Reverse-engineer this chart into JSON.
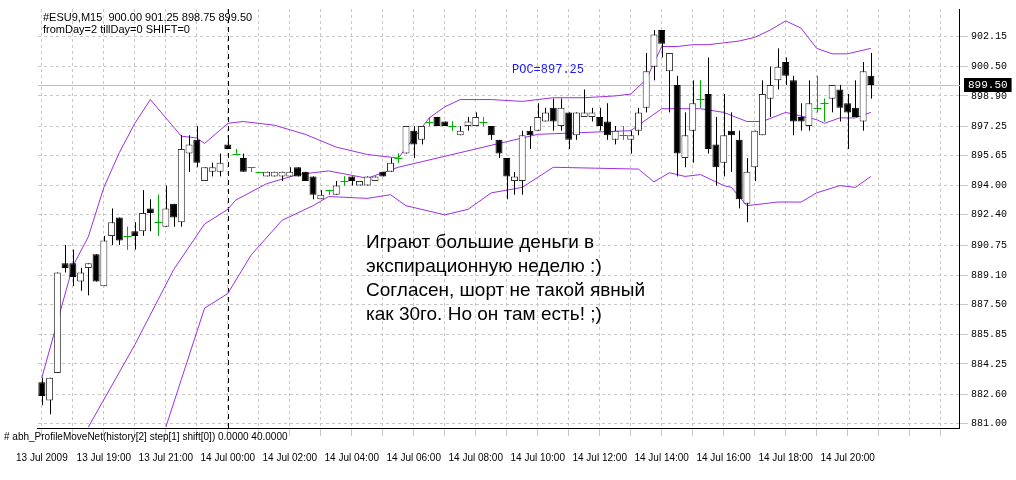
{
  "chart_data": {
    "type": "candlestick",
    "title": "#ESU9,M15  900.00 901.25 898.75 899.50",
    "subtitle": "fromDay=2 tillDay=0 SHIFT=0",
    "categories": [
      "13 Jul 2009",
      null,
      null,
      null,
      null,
      null,
      null,
      null,
      "13 Jul 19:00",
      null,
      null,
      null,
      null,
      null,
      null,
      null,
      "13 Jul 21:00",
      null,
      null,
      null,
      null,
      null,
      null,
      null,
      "14 Jul 00:00",
      null,
      null,
      null,
      null,
      null,
      null,
      null,
      "14 Jul 02:00",
      null,
      null,
      null,
      null,
      null,
      null,
      null,
      "14 Jul 04:00",
      null,
      null,
      null,
      null,
      null,
      null,
      null,
      "14 Jul 06:00",
      null,
      null,
      null,
      null,
      null,
      null,
      null,
      "14 Jul 08:00",
      null,
      null,
      null,
      null,
      null,
      null,
      null,
      "14 Jul 10:00",
      null,
      null,
      null,
      null,
      null,
      null,
      null,
      "14 Jul 12:00",
      null,
      null,
      null,
      null,
      null,
      null,
      null,
      "14 Jul 14:00",
      null,
      null,
      null,
      null,
      null,
      null,
      null,
      "14 Jul 16:00",
      null,
      null,
      null,
      null,
      null,
      null,
      null,
      "14 Jul 18:00",
      null,
      null,
      null,
      null,
      null,
      null,
      null,
      "14 Jul 20:00",
      null,
      null,
      null,
      null,
      null,
      null,
      null,
      null,
      null,
      null,
      null,
      null,
      null,
      null
    ],
    "ohlc": [
      [
        883.25,
        883.5,
        882.0,
        882.5
      ],
      [
        882.25,
        883.5,
        881.5,
        883.5
      ],
      [
        883.75,
        889.25,
        883.75,
        889.25
      ],
      [
        889.75,
        890.75,
        889.25,
        889.5
      ],
      [
        889.75,
        890.5,
        888.5,
        889.0
      ],
      [
        888.75,
        889.5,
        888.25,
        889.25
      ],
      [
        889.5,
        889.75,
        888.0,
        889.75
      ],
      [
        890.25,
        890.25,
        888.75,
        888.75
      ],
      [
        888.5,
        891.25,
        888.5,
        891.0
      ],
      [
        891.25,
        892.75,
        890.75,
        892.0
      ],
      [
        892.25,
        892.25,
        890.75,
        891.0
      ],
      [
        891.25,
        891.75,
        890.5,
        891.25
      ],
      [
        891.5,
        892.0,
        890.5,
        891.25
      ],
      [
        891.5,
        893.75,
        891.25,
        892.5
      ],
      [
        892.75,
        893.25,
        891.5,
        892.5
      ],
      [
        892.0,
        893.5,
        891.25,
        892.0
      ],
      [
        891.75,
        894.0,
        891.75,
        892.75
      ],
      [
        893.0,
        893.0,
        891.75,
        892.25
      ],
      [
        892.0,
        896.75,
        891.75,
        896.0
      ],
      [
        895.75,
        896.75,
        894.75,
        896.25
      ],
      [
        896.5,
        897.25,
        895.0,
        895.25
      ],
      [
        894.25,
        895.0,
        894.25,
        895.0
      ],
      [
        894.75,
        895.25,
        894.5,
        895.0
      ],
      [
        894.75,
        895.75,
        894.5,
        895.25
      ],
      [
        896.25,
        896.5,
        896.0,
        896.0
      ],
      [
        895.75,
        896.0,
        895.75,
        895.75
      ],
      [
        895.5,
        895.75,
        894.75,
        894.75
      ],
      [
        895.0,
        895.0,
        894.75,
        895.0
      ],
      [
        894.75,
        894.75,
        894.75,
        894.75
      ],
      [
        894.5,
        894.75,
        894.5,
        894.75
      ],
      [
        894.5,
        894.75,
        894.5,
        894.75
      ],
      [
        894.5,
        894.75,
        894.25,
        894.75
      ],
      [
        894.5,
        895.0,
        894.5,
        894.75
      ],
      [
        895.0,
        895.0,
        894.5,
        894.5
      ],
      [
        894.75,
        894.75,
        894.25,
        894.25
      ],
      [
        894.5,
        894.5,
        893.25,
        893.5
      ],
      [
        893.25,
        893.75,
        893.25,
        893.5
      ],
      [
        893.75,
        893.75,
        893.5,
        893.75
      ],
      [
        893.5,
        894.25,
        893.5,
        894.0
      ],
      [
        894.25,
        894.5,
        894.0,
        894.25
      ],
      [
        894.5,
        894.5,
        894.0,
        894.25
      ],
      [
        894.0,
        894.25,
        894.0,
        894.25
      ],
      [
        894.0,
        894.5,
        894.0,
        894.5
      ],
      [
        894.25,
        894.5,
        894.25,
        894.5
      ],
      [
        894.75,
        894.75,
        894.5,
        894.5
      ],
      [
        894.75,
        895.5,
        894.75,
        895.25
      ],
      [
        895.5,
        895.75,
        895.25,
        895.5
      ],
      [
        895.75,
        897.25,
        895.75,
        897.25
      ],
      [
        897.0,
        897.25,
        895.5,
        896.25
      ],
      [
        896.5,
        897.25,
        896.25,
        897.25
      ],
      [
        897.5,
        897.75,
        897.25,
        897.5
      ],
      [
        897.75,
        897.75,
        897.25,
        897.25
      ],
      [
        897.5,
        897.5,
        897.25,
        897.25
      ],
      [
        897.25,
        897.5,
        897.0,
        897.25
      ],
      [
        896.75,
        897.25,
        896.75,
        897.0
      ],
      [
        897.25,
        897.75,
        897.0,
        897.5
      ],
      [
        897.25,
        898.0,
        897.25,
        897.75
      ],
      [
        897.5,
        897.75,
        897.25,
        897.5
      ],
      [
        897.25,
        897.25,
        896.5,
        896.75
      ],
      [
        896.5,
        896.5,
        895.5,
        895.75
      ],
      [
        895.5,
        895.5,
        893.25,
        894.5
      ],
      [
        894.25,
        894.75,
        893.5,
        894.5
      ],
      [
        894.25,
        897.0,
        893.5,
        896.75
      ],
      [
        897.0,
        897.25,
        896.0,
        896.75
      ],
      [
        897.0,
        898.5,
        897.0,
        897.75
      ],
      [
        897.5,
        898.25,
        897.5,
        898.0
      ],
      [
        898.25,
        898.75,
        897.0,
        897.5
      ],
      [
        897.25,
        898.75,
        897.0,
        898.25
      ],
      [
        898.0,
        898.0,
        896.0,
        896.5
      ],
      [
        896.75,
        898.0,
        896.5,
        898.0
      ],
      [
        897.75,
        899.25,
        897.75,
        898.0
      ],
      [
        897.75,
        898.25,
        897.5,
        898.0
      ],
      [
        897.75,
        898.25,
        897.0,
        897.25
      ],
      [
        897.5,
        898.5,
        896.5,
        896.75
      ],
      [
        896.5,
        897.25,
        896.25,
        897.0
      ],
      [
        896.75,
        897.25,
        896.5,
        896.75
      ],
      [
        896.5,
        897.0,
        895.75,
        896.75
      ],
      [
        897.0,
        898.25,
        896.75,
        898.0
      ],
      [
        898.25,
        901.25,
        898.0,
        900.25
      ],
      [
        900.5,
        902.5,
        899.75,
        902.25
      ],
      [
        902.5,
        902.5,
        901.0,
        901.75
      ],
      [
        900.25,
        901.25,
        898.0,
        901.25
      ],
      [
        899.5,
        900.0,
        894.5,
        895.75
      ],
      [
        895.5,
        898.0,
        895.0,
        896.75
      ],
      [
        897.0,
        899.75,
        895.25,
        898.5
      ],
      [
        898.75,
        899.75,
        898.25,
        898.75
      ],
      [
        899.0,
        901.0,
        895.75,
        896.0
      ],
      [
        896.25,
        897.75,
        894.0,
        895.0
      ],
      [
        895.25,
        899.0,
        894.5,
        896.75
      ],
      [
        897.0,
        898.0,
        894.75,
        896.75
      ],
      [
        896.5,
        897.0,
        892.75,
        893.25
      ],
      [
        893.0,
        895.5,
        892.0,
        894.75
      ],
      [
        895.0,
        897.0,
        894.25,
        897.0
      ],
      [
        896.75,
        899.75,
        896.75,
        899.0
      ],
      [
        898.75,
        900.5,
        897.75,
        899.5
      ],
      [
        899.75,
        901.5,
        899.25,
        900.5
      ],
      [
        900.75,
        901.0,
        899.5,
        900.0
      ],
      [
        899.75,
        900.0,
        896.75,
        897.5
      ],
      [
        897.75,
        898.5,
        897.0,
        897.5
      ],
      [
        897.25,
        899.75,
        897.0,
        898.5
      ],
      [
        898.25,
        900.0,
        898.0,
        898.25
      ],
      [
        898.5,
        898.75,
        897.5,
        898.5
      ],
      [
        898.75,
        899.5,
        898.0,
        899.5
      ],
      [
        899.25,
        899.5,
        897.5,
        898.25
      ],
      [
        898.5,
        899.0,
        896.0,
        898.0
      ],
      [
        898.25,
        899.75,
        897.75,
        897.75
      ],
      [
        897.5,
        900.75,
        897.0,
        900.25
      ],
      [
        900.0,
        901.25,
        898.75,
        899.5
      ],
      null,
      null,
      null,
      null,
      null,
      null,
      null,
      null,
      null,
      null,
      null
    ],
    "series": [
      {
        "type": "line",
        "color": "#9b30e6",
        "values": [
          883.5,
          null,
          null,
          null,
          889.6,
          null,
          891.2,
          null,
          893.9,
          null,
          895.8,
          null,
          897.4,
          null,
          898.7,
          null,
          897.7,
          null,
          896.7,
          null,
          896.6,
          896.3,
          null,
          null,
          897.4,
          null,
          897.5,
          null,
          null,
          null,
          897.3,
          null,
          null,
          null,
          896.8,
          null,
          null,
          null,
          896.1,
          null,
          null,
          null,
          895.7,
          null,
          null,
          null,
          895.5,
          null,
          null,
          null,
          897.7,
          null,
          898.3,
          null,
          898.7,
          null,
          null,
          null,
          898.7,
          null,
          null,
          null,
          898.6,
          null,
          null,
          null,
          898.8,
          null,
          null,
          null,
          898.8,
          null,
          null,
          null,
          898.9,
          null,
          899.0,
          null,
          899.8,
          null,
          901.6,
          null,
          901.6,
          null,
          901.7,
          null,
          901.7,
          null,
          901.8,
          null,
          901.9,
          null,
          902.1,
          null,
          902.5,
          null,
          903.0,
          null,
          902.6,
          null,
          901.5,
          null,
          901.2,
          null,
          901.2,
          null,
          901.4,
          901.5,
          null,
          null,
          null,
          null,
          null,
          null,
          null,
          null,
          null,
          null,
          null
        ]
      },
      {
        "type": "line",
        "color": "#9b30e6",
        "values": [
          null,
          null,
          null,
          null,
          null,
          null,
          880.8,
          null,
          null,
          null,
          null,
          null,
          885.3,
          null,
          null,
          null,
          null,
          889.4,
          null,
          null,
          null,
          891.9,
          null,
          null,
          892.7,
          893.2,
          null,
          null,
          null,
          894.1,
          null,
          null,
          null,
          894.6,
          null,
          null,
          null,
          894.8,
          null,
          null,
          null,
          null,
          894.4,
          null,
          null,
          null,
          895.0,
          null,
          null,
          null,
          null,
          null,
          null,
          null,
          null,
          null,
          null,
          null,
          896.2,
          null,
          null,
          null,
          null,
          null,
          896.8,
          null,
          null,
          null,
          null,
          null,
          null,
          null,
          null,
          null,
          null,
          null,
          897.0,
          null,
          null,
          null,
          898.2,
          null,
          null,
          898.2,
          null,
          898.2,
          null,
          null,
          898.0,
          null,
          null,
          897.5,
          null,
          897.5,
          null,
          null,
          898.0,
          null,
          null,
          null,
          897.6,
          897.4,
          null,
          897.7,
          null,
          897.7,
          null,
          898.0,
          null,
          null,
          null,
          null,
          null,
          null,
          null,
          null,
          null,
          null,
          null
        ]
      },
      {
        "type": "line",
        "color": "#9b30e6",
        "values": [
          null,
          null,
          null,
          null,
          null,
          null,
          null,
          null,
          null,
          null,
          null,
          null,
          null,
          null,
          null,
          null,
          880.8,
          null,
          883.4,
          null,
          null,
          887.3,
          null,
          null,
          888.1,
          null,
          null,
          890.2,
          null,
          null,
          null,
          892.1,
          null,
          null,
          null,
          892.9,
          null,
          893.4,
          null,
          null,
          null,
          null,
          893.3,
          null,
          null,
          893.5,
          null,
          892.9,
          null,
          null,
          null,
          null,
          892.4,
          null,
          null,
          892.7,
          null,
          null,
          893.6,
          null,
          null,
          null,
          893.9,
          null,
          null,
          null,
          895.0,
          null,
          null,
          null,
          null,
          null,
          null,
          null,
          null,
          null,
          null,
          894.9,
          null,
          894.2,
          null,
          894.7,
          null,
          894.5,
          null,
          894.6,
          null,
          null,
          894.0,
          893.9,
          null,
          892.9,
          null,
          null,
          null,
          893.1,
          null,
          null,
          893.1,
          null,
          893.6,
          null,
          null,
          894.0,
          null,
          893.9,
          null,
          894.5,
          null,
          null,
          null,
          null,
          null,
          null,
          null,
          null,
          null,
          null,
          null
        ]
      }
    ],
    "ylim": [
      880.75,
      903.65
    ],
    "yticks": [
      {
        "value": 881.0,
        "label": "881.00"
      },
      {
        "value": 882.6,
        "label": "882.60"
      },
      {
        "value": 884.25,
        "label": "884.25"
      },
      {
        "value": 885.85,
        "label": "885.85"
      },
      {
        "value": 887.5,
        "label": "887.50"
      },
      {
        "value": 889.1,
        "label": "889.10"
      },
      {
        "value": 890.75,
        "label": "890.75"
      },
      {
        "value": 892.4,
        "label": "892.40"
      },
      {
        "value": 894.0,
        "label": "894.00"
      },
      {
        "value": 895.65,
        "label": "895.65"
      },
      {
        "value": 897.25,
        "label": "897.25"
      },
      {
        "value": 898.9,
        "label": "898.90"
      },
      {
        "value": 900.5,
        "label": "900.50"
      },
      {
        "value": 902.15,
        "label": "902.15"
      }
    ],
    "grid": true,
    "legend": false,
    "ref_lines": [
      {
        "axis": "y",
        "value": 899.5,
        "label": "899.50",
        "color": "#c0c0c0"
      },
      {
        "axis": "x",
        "value": "14 Jul 00:00",
        "line_style": "dashed",
        "color": "#000000"
      }
    ],
    "annotations": [
      "POC=897.25",
      "Играют большие деньги в\nэкспирационную неделю :)\nСогласен, шорт не такой явный\nкак 30го. Но он там есть! ;)",
      "# abh_ProfileMoveNet(history[2] step[1] shift[0]) 0.0000 40.0000"
    ]
  }
}
